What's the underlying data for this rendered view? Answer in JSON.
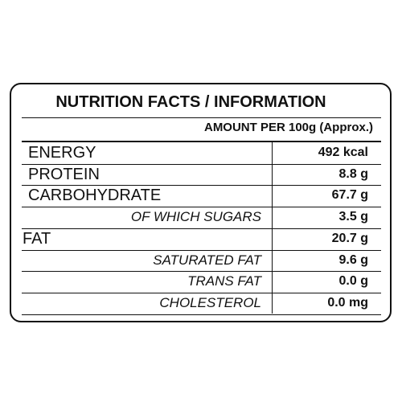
{
  "header": {
    "title": "NUTRITION FACTS / INFORMATION",
    "subtitle": "AMOUNT PER 100g (Approx.)"
  },
  "table": {
    "rows": [
      [
        "ENERGY",
        "492 kcal"
      ],
      [
        "PROTEIN",
        "8.8 g"
      ],
      [
        "CARBOHYDRATE",
        "67.7 g"
      ],
      [
        "OF WHICH SUGARS",
        "3.5 g"
      ],
      [
        "FAT",
        "20.7 g"
      ],
      [
        "SATURATED FAT",
        "9.6 g"
      ],
      [
        "TRANS FAT",
        "0.0 g"
      ],
      [
        "CHOLESTEROL",
        "0.0 mg"
      ]
    ]
  }
}
